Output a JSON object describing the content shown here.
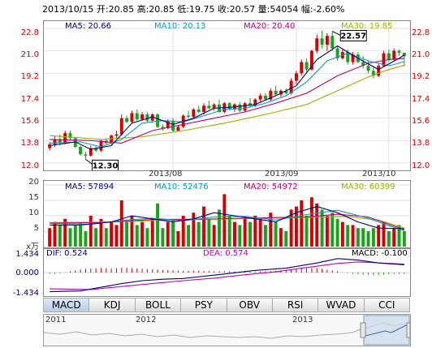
{
  "header": {
    "info": "2013/10/15 开:20.85 高:20.85 低:19.75 收:20.57 量:54054 幅:-2.60%"
  },
  "colors": {
    "up": "#d40000",
    "down": "#1aa31a",
    "ma5": "#000080",
    "ma10": "#00a0c0",
    "ma20": "#c00070",
    "ma30": "#a0b000",
    "dif": "#000080",
    "dea": "#c000c0"
  },
  "price_legend": {
    "ma5": "MA5: 20.66",
    "ma10": "MA10: 20.13",
    "ma20": "MA20: 20.40",
    "ma30": "MA30: 19.85"
  },
  "volume_legend": {
    "ma5": "MA5: 57894",
    "ma10": "MA10: 52476",
    "ma20": "MA20: 54972",
    "ma30": "MA30: 60399"
  },
  "macd_legend": {
    "dif": "DIF: 0.524",
    "dea": "DEA: 0.574",
    "macd": "MACD: -0.100"
  },
  "volume_unit": "x万",
  "price_axis": [
    "22.8",
    "21.0",
    "19.2",
    "17.4",
    "15.6",
    "13.8",
    "12.0"
  ],
  "volume_axis": [
    "20",
    "15",
    "10",
    "5"
  ],
  "macd_axis": [
    "1.434",
    "0.000",
    "-1.434"
  ],
  "date_ticks": [
    "2013/08",
    "2013/09",
    "2013/10"
  ],
  "annotations": {
    "high": "22.57",
    "low": "12.30"
  },
  "tabs": [
    "MACD",
    "KDJ",
    "BOLL",
    "PSY",
    "OBV",
    "RSI",
    "WVAD",
    "CCI"
  ],
  "navigator": {
    "years": [
      "2011",
      "2012",
      "2013"
    ]
  },
  "chart_data": {
    "type": "candlestick",
    "price_range": [
      12.0,
      22.8
    ],
    "volume_range": [
      0,
      20
    ],
    "macd_range": [
      -1.434,
      1.434
    ],
    "candles": [
      [
        13.2,
        13.7,
        13.0,
        13.5,
        6
      ],
      [
        13.5,
        14.2,
        13.3,
        13.9,
        8
      ],
      [
        13.9,
        14.3,
        13.4,
        13.6,
        7
      ],
      [
        13.6,
        14.6,
        13.5,
        14.4,
        9
      ],
      [
        14.4,
        14.6,
        13.8,
        14.0,
        6
      ],
      [
        14.0,
        14.1,
        13.2,
        13.3,
        7
      ],
      [
        13.3,
        13.4,
        12.6,
        12.7,
        8
      ],
      [
        12.7,
        12.9,
        12.3,
        12.6,
        5
      ],
      [
        12.6,
        13.4,
        12.5,
        13.2,
        10
      ],
      [
        13.2,
        13.4,
        12.9,
        13.0,
        6
      ],
      [
        13.0,
        13.9,
        12.9,
        13.8,
        9
      ],
      [
        13.8,
        14.0,
        13.5,
        13.6,
        6
      ],
      [
        13.6,
        14.3,
        13.5,
        14.2,
        8
      ],
      [
        14.2,
        14.6,
        14.0,
        14.3,
        7
      ],
      [
        14.3,
        15.9,
        14.2,
        15.6,
        15
      ],
      [
        15.6,
        15.8,
        15.2,
        15.3,
        8
      ],
      [
        15.3,
        16.2,
        15.2,
        16.0,
        10
      ],
      [
        16.0,
        16.3,
        15.4,
        15.5,
        7
      ],
      [
        15.5,
        16.1,
        15.4,
        15.9,
        8
      ],
      [
        15.9,
        16.1,
        15.3,
        15.4,
        6
      ],
      [
        15.4,
        16.0,
        15.3,
        15.9,
        9
      ],
      [
        15.9,
        16.0,
        14.8,
        14.9,
        14
      ],
      [
        14.9,
        15.1,
        14.6,
        14.8,
        6
      ],
      [
        14.8,
        15.5,
        14.7,
        15.4,
        8
      ],
      [
        15.4,
        15.6,
        14.5,
        14.6,
        9
      ],
      [
        14.6,
        15.0,
        14.5,
        14.9,
        5
      ],
      [
        14.9,
        15.9,
        14.8,
        15.8,
        10
      ],
      [
        15.8,
        16.2,
        15.6,
        15.7,
        7
      ],
      [
        15.7,
        16.4,
        15.6,
        16.3,
        11
      ],
      [
        16.3,
        16.6,
        16.0,
        16.1,
        8
      ],
      [
        16.1,
        16.8,
        15.9,
        16.6,
        13
      ],
      [
        16.6,
        17.0,
        16.3,
        16.4,
        9
      ],
      [
        16.4,
        16.8,
        16.2,
        16.7,
        7
      ],
      [
        16.7,
        17.1,
        16.0,
        16.1,
        12
      ],
      [
        16.1,
        16.9,
        16.0,
        16.8,
        17
      ],
      [
        16.8,
        16.9,
        16.2,
        16.3,
        10
      ],
      [
        16.3,
        16.8,
        16.1,
        16.7,
        8
      ],
      [
        16.7,
        16.9,
        16.1,
        16.2,
        7
      ],
      [
        16.2,
        16.9,
        16.1,
        16.8,
        9
      ],
      [
        16.8,
        17.2,
        16.5,
        16.6,
        8
      ],
      [
        16.6,
        17.2,
        16.5,
        17.1,
        10
      ],
      [
        17.1,
        17.6,
        16.9,
        17.4,
        9
      ],
      [
        17.4,
        17.6,
        17.0,
        17.1,
        7
      ],
      [
        17.1,
        18.0,
        17.0,
        17.8,
        11
      ],
      [
        17.8,
        18.2,
        17.4,
        17.5,
        8
      ],
      [
        17.5,
        17.9,
        17.3,
        17.8,
        6
      ],
      [
        17.8,
        18.0,
        17.5,
        17.6,
        5
      ],
      [
        17.6,
        18.8,
        17.5,
        18.6,
        12
      ],
      [
        18.6,
        19.4,
        18.3,
        19.2,
        13
      ],
      [
        19.2,
        20.3,
        19.0,
        20.1,
        15
      ],
      [
        20.1,
        20.4,
        19.3,
        19.5,
        10
      ],
      [
        19.5,
        21.1,
        19.4,
        21.0,
        16
      ],
      [
        21.0,
        22.3,
        20.8,
        22.0,
        14
      ],
      [
        22.0,
        22.6,
        21.2,
        21.5,
        12
      ],
      [
        21.5,
        22.4,
        21.0,
        22.2,
        10
      ],
      [
        22.2,
        22.57,
        21.0,
        21.2,
        11
      ],
      [
        21.2,
        21.4,
        20.2,
        20.4,
        9
      ],
      [
        20.4,
        21.2,
        20.3,
        20.9,
        8
      ],
      [
        20.9,
        21.1,
        19.9,
        20.1,
        7
      ],
      [
        20.1,
        20.9,
        19.9,
        20.7,
        7
      ],
      [
        20.7,
        20.9,
        20.0,
        20.1,
        6
      ],
      [
        20.1,
        20.6,
        19.6,
        19.8,
        6
      ],
      [
        19.8,
        20.2,
        19.2,
        19.4,
        5
      ],
      [
        19.4,
        19.8,
        18.8,
        19.0,
        6
      ],
      [
        19.0,
        20.0,
        18.9,
        19.8,
        7
      ],
      [
        19.8,
        21.0,
        19.7,
        20.8,
        8
      ],
      [
        20.8,
        21.1,
        20.1,
        20.3,
        5
      ],
      [
        20.3,
        21.2,
        20.2,
        21.0,
        6
      ],
      [
        21.0,
        21.1,
        20.6,
        20.85,
        7
      ],
      [
        20.85,
        20.85,
        19.75,
        20.57,
        5
      ]
    ],
    "ma_price": {
      "ma5": [
        [
          0,
          13.4
        ],
        [
          5,
          13.7
        ],
        [
          8,
          13.1
        ],
        [
          12,
          13.4
        ],
        [
          16,
          15.2
        ],
        [
          20,
          15.7
        ],
        [
          24,
          15.1
        ],
        [
          28,
          15.6
        ],
        [
          32,
          16.4
        ],
        [
          36,
          16.5
        ],
        [
          40,
          16.7
        ],
        [
          44,
          17.4
        ],
        [
          48,
          18.2
        ],
        [
          52,
          20.3
        ],
        [
          56,
          21.4
        ],
        [
          60,
          20.4
        ],
        [
          64,
          19.5
        ],
        [
          68,
          20.4
        ],
        [
          69,
          20.66
        ]
      ],
      "ma10": [
        [
          0,
          13.6
        ],
        [
          6,
          13.7
        ],
        [
          10,
          13.3
        ],
        [
          14,
          13.9
        ],
        [
          18,
          15.2
        ],
        [
          22,
          15.4
        ],
        [
          26,
          15.3
        ],
        [
          30,
          15.8
        ],
        [
          34,
          16.3
        ],
        [
          38,
          16.4
        ],
        [
          42,
          16.8
        ],
        [
          46,
          17.4
        ],
        [
          50,
          18.5
        ],
        [
          54,
          20.2
        ],
        [
          58,
          20.8
        ],
        [
          62,
          20.2
        ],
        [
          66,
          19.8
        ],
        [
          69,
          20.13
        ]
      ],
      "ma20": [
        [
          0,
          13.9
        ],
        [
          8,
          13.8
        ],
        [
          14,
          13.6
        ],
        [
          20,
          14.6
        ],
        [
          26,
          15.1
        ],
        [
          32,
          15.6
        ],
        [
          38,
          16.1
        ],
        [
          44,
          16.8
        ],
        [
          50,
          17.6
        ],
        [
          56,
          19.0
        ],
        [
          62,
          20.0
        ],
        [
          66,
          20.3
        ],
        [
          69,
          20.4
        ]
      ],
      "ma30": [
        [
          0,
          14.2
        ],
        [
          10,
          13.9
        ],
        [
          18,
          14.1
        ],
        [
          26,
          14.6
        ],
        [
          34,
          15.2
        ],
        [
          42,
          15.9
        ],
        [
          50,
          16.7
        ],
        [
          56,
          17.8
        ],
        [
          62,
          18.9
        ],
        [
          66,
          19.5
        ],
        [
          69,
          19.85
        ]
      ]
    },
    "ma_volume": {
      "ma5": [
        [
          0,
          7
        ],
        [
          6,
          7
        ],
        [
          12,
          8
        ],
        [
          16,
          10
        ],
        [
          20,
          9
        ],
        [
          24,
          8
        ],
        [
          28,
          9
        ],
        [
          32,
          11
        ],
        [
          36,
          10
        ],
        [
          40,
          9
        ],
        [
          44,
          8
        ],
        [
          48,
          11
        ],
        [
          52,
          13
        ],
        [
          56,
          11
        ],
        [
          60,
          8
        ],
        [
          64,
          6
        ],
        [
          69,
          5.8
        ]
      ],
      "ma10": [
        [
          0,
          7.5
        ],
        [
          8,
          7.2
        ],
        [
          14,
          8.5
        ],
        [
          20,
          9.2
        ],
        [
          26,
          8.4
        ],
        [
          32,
          9.6
        ],
        [
          38,
          9.8
        ],
        [
          44,
          8.6
        ],
        [
          50,
          10.4
        ],
        [
          56,
          11.8
        ],
        [
          62,
          9.2
        ],
        [
          66,
          6.8
        ],
        [
          69,
          5.2
        ]
      ],
      "ma20": [
        [
          0,
          7.6
        ],
        [
          10,
          7.8
        ],
        [
          20,
          8.8
        ],
        [
          30,
          8.9
        ],
        [
          40,
          9.3
        ],
        [
          50,
          9.6
        ],
        [
          56,
          10.5
        ],
        [
          62,
          9.6
        ],
        [
          69,
          5.5
        ]
      ],
      "ma30": [
        [
          0,
          7.8
        ],
        [
          12,
          8.0
        ],
        [
          24,
          8.6
        ],
        [
          36,
          9.0
        ],
        [
          48,
          9.4
        ],
        [
          58,
          9.8
        ],
        [
          64,
          8.6
        ],
        [
          69,
          6.0
        ]
      ]
    },
    "macd": {
      "dif": [
        [
          0,
          -1.3
        ],
        [
          6,
          -1.25
        ],
        [
          10,
          -1.0
        ],
        [
          14,
          -0.75
        ],
        [
          18,
          -0.55
        ],
        [
          22,
          -0.45
        ],
        [
          26,
          -0.4
        ],
        [
          30,
          -0.25
        ],
        [
          34,
          -0.1
        ],
        [
          40,
          0.15
        ],
        [
          46,
          0.3
        ],
        [
          52,
          0.65
        ],
        [
          56,
          0.95
        ],
        [
          60,
          0.85
        ],
        [
          64,
          0.65
        ],
        [
          69,
          0.524
        ]
      ],
      "dea": [
        [
          0,
          -1.1
        ],
        [
          8,
          -1.15
        ],
        [
          14,
          -0.95
        ],
        [
          20,
          -0.75
        ],
        [
          26,
          -0.55
        ],
        [
          32,
          -0.38
        ],
        [
          38,
          -0.15
        ],
        [
          44,
          0.05
        ],
        [
          50,
          0.35
        ],
        [
          56,
          0.62
        ],
        [
          60,
          0.72
        ],
        [
          64,
          0.66
        ],
        [
          69,
          0.574
        ]
      ],
      "hist": [
        -0.1,
        -0.08,
        -0.05,
        0.02,
        0.08,
        0.15,
        0.2,
        0.25,
        0.28,
        0.3,
        0.32,
        0.3,
        0.28,
        0.3,
        0.33,
        0.32,
        0.3,
        0.28,
        0.26,
        0.24,
        0.22,
        0.2,
        0.18,
        0.17,
        0.15,
        0.14,
        0.13,
        0.12,
        0.12,
        0.11,
        0.1,
        0.1,
        0.09,
        0.09,
        0.08,
        0.08,
        0.07,
        0.07,
        0.07,
        0.06,
        0.06,
        0.07,
        0.08,
        0.1,
        0.12,
        0.15,
        0.18,
        0.22,
        0.25,
        0.28,
        0.3,
        0.32,
        0.3,
        0.26,
        0.2,
        0.14,
        0.08,
        0.02,
        -0.04,
        -0.08,
        -0.12,
        -0.15,
        -0.17,
        -0.18,
        -0.17,
        -0.15,
        -0.13,
        -0.11,
        -0.1,
        -0.1
      ]
    }
  }
}
